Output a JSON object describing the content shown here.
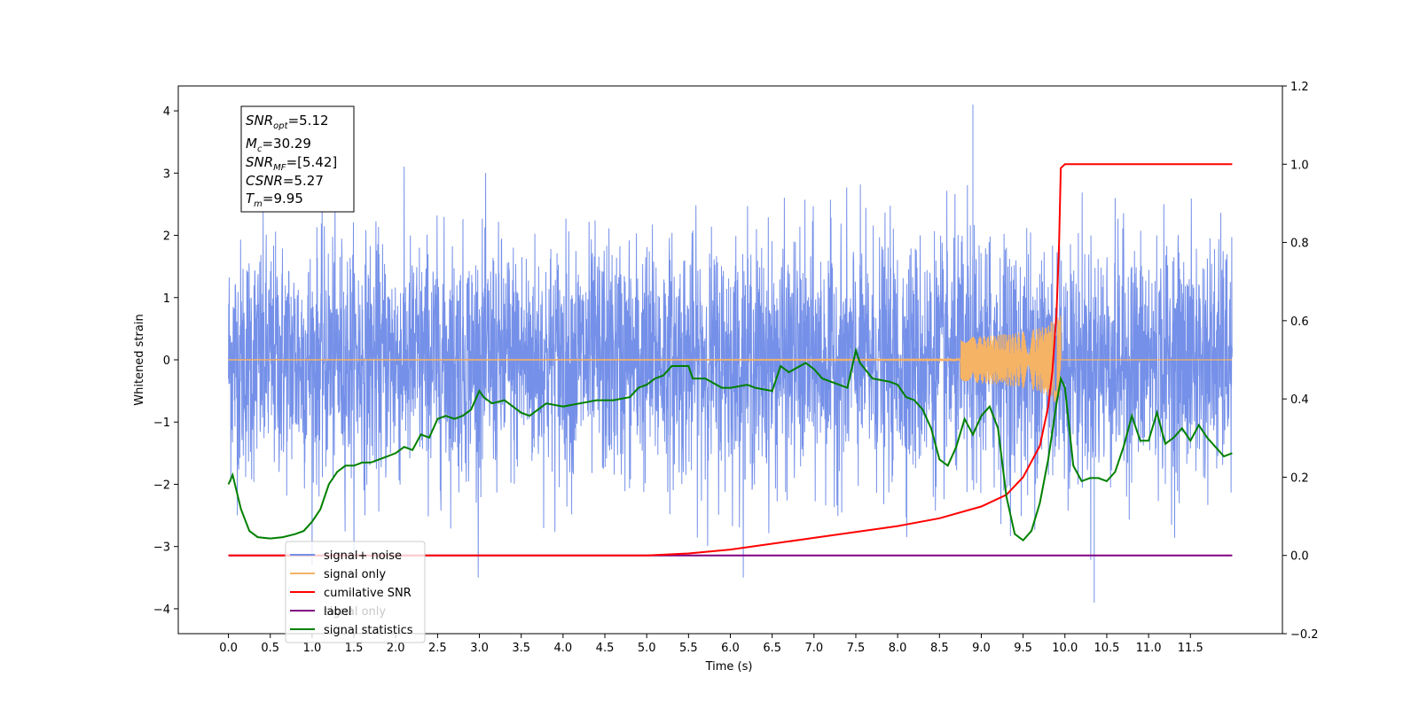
{
  "colors": {
    "signal_noise": "#7590e8",
    "signal_only": "#f5b366",
    "cumulative_snr": "#ff0000",
    "label": "#800080",
    "signal_statistics": "#008000"
  },
  "chart_data": {
    "type": "line",
    "xlabel": "Time (s)",
    "ylabel": "Whitened strain",
    "xlim": [
      -0.6,
      12.6
    ],
    "ylim": [
      -4.4,
      4.4
    ],
    "ylim_right": [
      -0.2,
      1.2
    ],
    "x_ticks": [
      "0.0",
      "0.5",
      "1.0",
      "1.5",
      "2.0",
      "2.5",
      "3.0",
      "3.5",
      "4.0",
      "4.5",
      "5.0",
      "5.5",
      "6.0",
      "6.5",
      "7.0",
      "7.5",
      "8.0",
      "8.5",
      "9.0",
      "9.5",
      "10.0",
      "10.5",
      "11.0",
      "11.5"
    ],
    "y_ticks_left": [
      "−4",
      "−3",
      "−2",
      "−1",
      "0",
      "1",
      "2",
      "3",
      "4"
    ],
    "y_ticks_right": [
      "−0.2",
      "0.0",
      "0.2",
      "0.4",
      "0.6",
      "0.8",
      "1.0",
      "1.2"
    ],
    "grid": false,
    "legend_placement": "lower-left",
    "annotation": {
      "snr_opt": {
        "sym": "SNR",
        "sub": "opt",
        "value": "=5.12"
      },
      "mc": {
        "sym": "M",
        "sub": "c",
        "value": "=30.29"
      },
      "snr_mf": {
        "sym": "SNR",
        "sub": "MF",
        "value": "=[5.42]"
      },
      "csnr": {
        "sym": "CSNR",
        "value": "=5.27"
      },
      "tm": {
        "sym": "T",
        "sub": "m",
        "value": "=9.95"
      }
    },
    "series": [
      {
        "name": "signal+ noise",
        "axis": "left",
        "description_values": {
          "typical_amplitude": 1.4,
          "max_peak": 4.1,
          "max_peak_time": 8.9,
          "min_dip": -3.9,
          "min_dip_time": 10.35
        }
      },
      {
        "name": "signal only",
        "axis": "left",
        "merger_time": 9.95,
        "peak_amplitude": 1.0
      },
      {
        "name": "cumilative SNR",
        "axis": "right",
        "x": [
          0,
          5.0,
          5.5,
          6.0,
          6.5,
          7.0,
          7.5,
          8.0,
          8.5,
          9.0,
          9.3,
          9.5,
          9.7,
          9.8,
          9.85,
          9.9,
          9.93,
          9.95,
          10.0,
          12.0
        ],
        "y": [
          0,
          0,
          0.005,
          0.015,
          0.03,
          0.045,
          0.06,
          0.075,
          0.095,
          0.125,
          0.155,
          0.2,
          0.28,
          0.38,
          0.47,
          0.62,
          0.8,
          0.99,
          1.0,
          1.0
        ]
      },
      {
        "name": "label",
        "axis": "right",
        "x": [
          0,
          12.0
        ],
        "y": [
          0,
          0
        ]
      },
      {
        "name": "signal statistics",
        "axis": "left",
        "x": [
          0,
          0.05,
          0.15,
          0.25,
          0.35,
          0.5,
          0.65,
          0.8,
          0.9,
          1.0,
          1.1,
          1.2,
          1.3,
          1.4,
          1.5,
          1.6,
          1.7,
          1.8,
          1.9,
          2.0,
          2.1,
          2.2,
          2.3,
          2.4,
          2.5,
          2.6,
          2.7,
          2.8,
          2.9,
          3.0,
          3.05,
          3.15,
          3.3,
          3.5,
          3.6,
          3.8,
          4.0,
          4.2,
          4.4,
          4.6,
          4.8,
          4.9,
          5.0,
          5.1,
          5.2,
          5.3,
          5.5,
          5.55,
          5.7,
          5.9,
          6.0,
          6.2,
          6.3,
          6.5,
          6.6,
          6.7,
          6.9,
          7.0,
          7.1,
          7.3,
          7.4,
          7.5,
          7.55,
          7.7,
          7.9,
          8.0,
          8.1,
          8.2,
          8.3,
          8.4,
          8.5,
          8.6,
          8.7,
          8.8,
          8.9,
          9.0,
          9.1,
          9.2,
          9.3,
          9.4,
          9.5,
          9.6,
          9.7,
          9.8,
          9.9,
          9.95,
          10.0,
          10.1,
          10.2,
          10.3,
          10.4,
          10.5,
          10.6,
          10.7,
          10.8,
          10.9,
          11.0,
          11.1,
          11.2,
          11.3,
          11.4,
          11.5,
          11.6,
          11.7,
          11.8,
          11.9,
          12.0
        ],
        "y": [
          -2.0,
          -1.85,
          -2.4,
          -2.75,
          -2.85,
          -2.87,
          -2.85,
          -2.8,
          -2.75,
          -2.6,
          -2.4,
          -2.0,
          -1.8,
          -1.7,
          -1.7,
          -1.65,
          -1.65,
          -1.6,
          -1.55,
          -1.5,
          -1.4,
          -1.45,
          -1.2,
          -1.25,
          -0.95,
          -0.9,
          -0.95,
          -0.9,
          -0.8,
          -0.5,
          -0.6,
          -0.7,
          -0.65,
          -0.85,
          -0.9,
          -0.7,
          -0.75,
          -0.7,
          -0.65,
          -0.65,
          -0.6,
          -0.45,
          -0.4,
          -0.3,
          -0.25,
          -0.1,
          -0.1,
          -0.3,
          -0.3,
          -0.45,
          -0.45,
          -0.4,
          -0.45,
          -0.5,
          -0.1,
          -0.2,
          -0.05,
          -0.15,
          -0.3,
          -0.4,
          -0.45,
          0.15,
          -0.05,
          -0.3,
          -0.35,
          -0.4,
          -0.6,
          -0.65,
          -0.8,
          -1.1,
          -1.6,
          -1.7,
          -1.4,
          -0.95,
          -1.2,
          -0.9,
          -0.75,
          -1.1,
          -2.2,
          -2.8,
          -2.9,
          -2.75,
          -2.3,
          -1.6,
          -0.7,
          -0.3,
          -0.45,
          -1.7,
          -1.95,
          -1.9,
          -1.9,
          -1.95,
          -1.8,
          -1.4,
          -0.9,
          -1.3,
          -1.3,
          -0.85,
          -1.35,
          -1.25,
          -1.1,
          -1.3,
          -1.05,
          -1.25,
          -1.4,
          -1.55,
          -1.5
        ]
      }
    ],
    "legend": [
      "signal+ noise",
      "signal only",
      "cumilative SNR",
      "label",
      "signal statistics"
    ],
    "legend_overlap_text": "signal only"
  }
}
